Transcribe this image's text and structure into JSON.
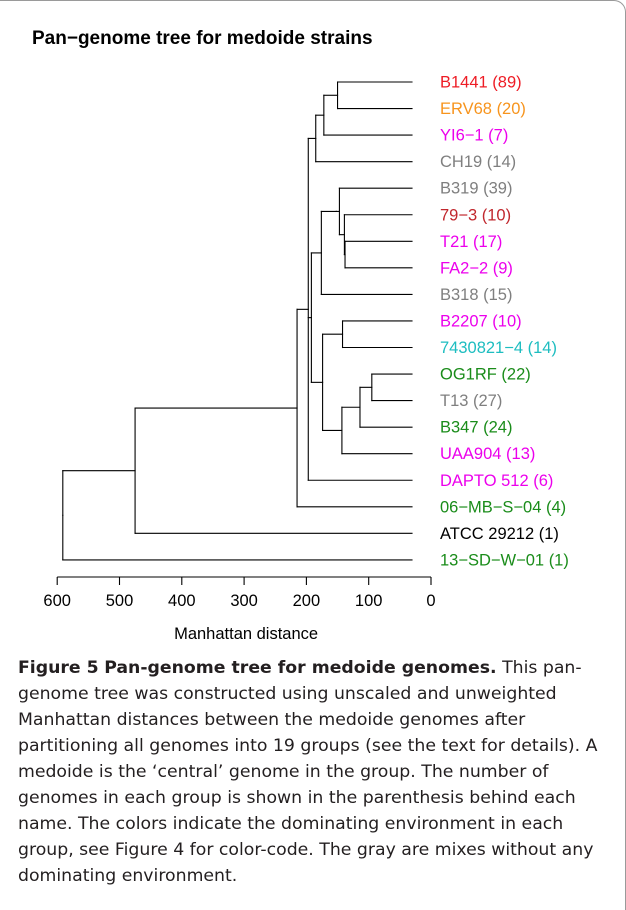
{
  "figure": {
    "title": "Pan−genome tree for medoide strains",
    "caption_label": "Figure 5",
    "caption_title": "Pan-genome tree for medoide genomes.",
    "caption_text": "This pan-genome tree was constructed using unscaled and unweighted Manhattan distances between the medoide genomes after partitioning all genomes into 19 groups (see the text for details). A medoide is the ‘central’ genome in the group. The number of genomes in each group is shown in the parenthesis behind each name. The colors indicate the dominating environment in each group, see Figure 4 for color-code. The gray are mixes without any dominating environment."
  },
  "axis": {
    "label": "Manhattan distance",
    "ticks": [
      "600",
      "500",
      "400",
      "300",
      "200",
      "100",
      "0"
    ]
  },
  "colors": {
    "red": "#ee1c25",
    "darkred": "#c1272d",
    "orange": "#f7941d",
    "magenta": "#ec00ec",
    "gray": "#7f7f7f",
    "cyan": "#1dbdc0",
    "green": "#1a8c1a",
    "black": "#000000"
  },
  "leaves": [
    {
      "label": "B1441 (89)",
      "color": "#ee1c25"
    },
    {
      "label": "ERV68 (20)",
      "color": "#f7941d"
    },
    {
      "label": "YI6−1 (7)",
      "color": "#ec00ec"
    },
    {
      "label": "CH19 (14)",
      "color": "#7f7f7f"
    },
    {
      "label": "B319 (39)",
      "color": "#7f7f7f"
    },
    {
      "label": "79−3 (10)",
      "color": "#c1272d"
    },
    {
      "label": "T21 (17)",
      "color": "#ec00ec"
    },
    {
      "label": "FA2−2 (9)",
      "color": "#ec00ec"
    },
    {
      "label": "B318 (15)",
      "color": "#7f7f7f"
    },
    {
      "label": "B2207 (10)",
      "color": "#ec00ec"
    },
    {
      "label": "7430821−4 (14)",
      "color": "#1dbdc0"
    },
    {
      "label": "OG1RF (22)",
      "color": "#1a8c1a"
    },
    {
      "label": "T13 (27)",
      "color": "#7f7f7f"
    },
    {
      "label": "B347 (24)",
      "color": "#1a8c1a"
    },
    {
      "label": "UAA904 (13)",
      "color": "#ec00ec"
    },
    {
      "label": "DAPTO 512 (6)",
      "color": "#ec00ec"
    },
    {
      "label": "06−MB−S−04 (4)",
      "color": "#1a8c1a"
    },
    {
      "label": "ATCC 29212 (1)",
      "color": "#000000"
    },
    {
      "label": "13−SD−W−01 (1)",
      "color": "#1a8c1a"
    }
  ],
  "tree": {
    "h": 591,
    "children": [
      {
        "h": 475,
        "children": [
          {
            "h": 215,
            "children": [
              {
                "h": 197,
                "children": [
                  {
                    "h": 185,
                    "children": [
                      {
                        "h": 172,
                        "children": [
                          {
                            "h": 150,
                            "children": [
                              {
                                "leaf": 0
                              },
                              {
                                "leaf": 1
                              }
                            ]
                          },
                          {
                            "leaf": 2
                          }
                        ]
                      },
                      {
                        "leaf": 3
                      }
                    ]
                  },
                  {
                    "h": 192,
                    "children": [
                      {
                        "h": 176,
                        "children": [
                          {
                            "h": 152,
                            "children": [
                              {
                                "h": 147,
                                "children": [
                                  {
                                    "leaf": 4
                                  },
                                  {
                                    "h": 139,
                                    "children": [
                                      {
                                        "leaf": 5
                                      },
                                      {
                                        "h": 138,
                                        "children": [
                                          {
                                            "leaf": 6
                                          },
                                          {
                                            "leaf": 7
                                          }
                                        ]
                                      }
                                    ]
                                  }
                                ]
                              }
                            ]
                          },
                          {
                            "leaf": 8
                          }
                        ]
                      },
                      {
                        "h": 174,
                        "children": [
                          {
                            "h": 142,
                            "children": [
                              {
                                "leaf": 9
                              },
                              {
                                "leaf": 10
                              }
                            ]
                          },
                          {
                            "h": 143,
                            "children": [
                              {
                                "h": 114,
                                "children": [
                                  {
                                    "h": 95,
                                    "children": [
                                      {
                                        "leaf": 11
                                      },
                                      {
                                        "leaf": 12
                                      }
                                    ]
                                  },
                                  {
                                    "leaf": 13
                                  }
                                ]
                              },
                              {
                                "leaf": 14
                              }
                            ]
                          }
                        ]
                      }
                    ]
                  },
                  {
                    "leaf": 15
                  }
                ]
              },
              {
                "leaf": 16
              }
            ]
          },
          {
            "leaf": 17
          }
        ]
      },
      {
        "leaf": 18
      }
    ]
  }
}
